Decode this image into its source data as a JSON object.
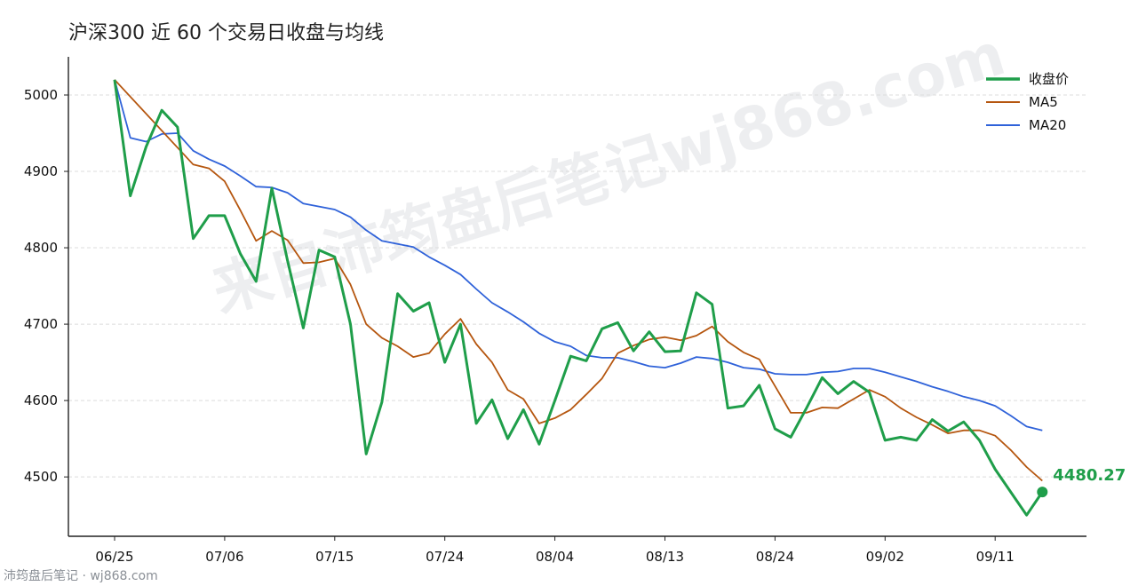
{
  "title": "沪深300 近 60 个交易日收盘与均线",
  "footer": "沛筠盘后笔记 · wj868.com",
  "watermark": "来自沛筠盘后笔记wj868.com",
  "colors": {
    "close": "#1f9e4a",
    "ma5": "#b5560f",
    "ma20": "#2f62d9",
    "grid": "#dcdcdc"
  },
  "chart_data": {
    "type": "line",
    "title": "沪深300 近 60 个交易日收盘与均线",
    "xlabel": "",
    "ylabel": "",
    "ylim": [
      4425,
      5050
    ],
    "yticks": [
      4500,
      4600,
      4700,
      4800,
      4900,
      5000
    ],
    "xticks": [
      "06/25",
      "07/06",
      "07/15",
      "07/24",
      "08/04",
      "08/13",
      "08/24",
      "09/02",
      "09/11"
    ],
    "xtick_index": [
      0,
      7,
      14,
      21,
      28,
      35,
      42,
      49,
      56
    ],
    "grid": "horizontal dashed",
    "legend_position": "top-right",
    "series": [
      {
        "name": "收盘价",
        "values": [
          5020,
          4868,
          4932,
          4980,
          4958,
          4812,
          4842,
          4842,
          4792,
          4756,
          4878,
          4783,
          4695,
          4797,
          4788,
          4700,
          4530,
          4598,
          4740,
          4717,
          4728,
          4650,
          4700,
          4570,
          4601,
          4550,
          4588,
          4543,
          4600,
          4658,
          4652,
          4694,
          4702,
          4665,
          4690,
          4664,
          4665,
          4741,
          4726,
          4590,
          4593,
          4620,
          4563,
          4552,
          4590,
          4630,
          4609,
          4625,
          4611,
          4548,
          4552,
          4548,
          4575,
          4560,
          4572,
          4548,
          4510,
          4480,
          4450,
          4480.27
        ]
      },
      {
        "name": "MA5",
        "values": [
          5020,
          null,
          null,
          null,
          null,
          4909,
          4904,
          4887,
          4849,
          4809,
          4822,
          4810,
          4780,
          4781,
          4786,
          4752,
          4700,
          4682,
          4671,
          4657,
          4662,
          4687,
          4707,
          4674,
          4650,
          4614,
          4602,
          4570,
          4577,
          4588,
          4608,
          4629,
          4662,
          4672,
          4680,
          4683,
          4679,
          4685,
          4697,
          4677,
          4663,
          4654,
          4619,
          4584,
          4584,
          4591,
          4590,
          4602,
          4614,
          4605,
          4590,
          4578,
          4568,
          4557,
          4561,
          4561,
          4554,
          4535,
          4513,
          4495
        ]
      },
      {
        "name": "MA20",
        "values": [
          5020,
          4944,
          4939,
          4949,
          4950,
          4927,
          4916,
          4907,
          4894,
          4880,
          4879,
          4872,
          4858,
          4854,
          4850,
          4840,
          4823,
          4809,
          4805,
          4801,
          4788,
          4777,
          4765,
          4746,
          4728,
          4716,
          4703,
          4688,
          4677,
          4671,
          4659,
          4656,
          4656,
          4651,
          4645,
          4643,
          4649,
          4657,
          4655,
          4650,
          4643,
          4641,
          4635,
          4634,
          4634,
          4637,
          4638,
          4642,
          4642,
          4637,
          4631,
          4625,
          4618,
          4612,
          4605,
          4600,
          4593,
          4580,
          4566,
          4561
        ]
      }
    ],
    "last_value_label": "4480.27"
  }
}
